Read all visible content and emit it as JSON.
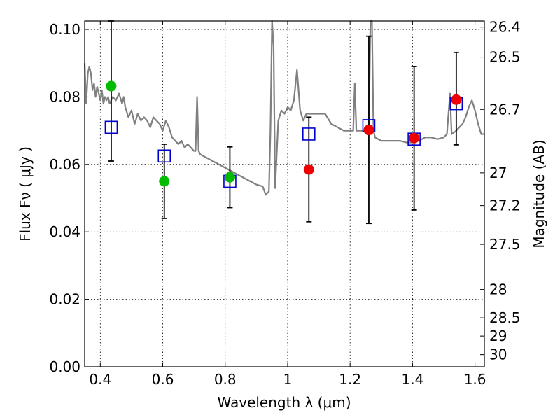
{
  "chart_data": {
    "type": "scatter",
    "xlabel": "Wavelength  λ (μm)",
    "ylabel": "Flux  Fν  ( μJy )",
    "ylabel_right": "Magnitude (AB)",
    "xlim": [
      0.35,
      1.63
    ],
    "ylim": [
      0.0,
      0.1025
    ],
    "grid": true,
    "x_ticks": [
      {
        "value": 0.4,
        "label": "0.4"
      },
      {
        "value": 0.6,
        "label": "0.6"
      },
      {
        "value": 0.8,
        "label": "0.8"
      },
      {
        "value": 1.0,
        "label": "1"
      },
      {
        "value": 1.2,
        "label": "1.2"
      },
      {
        "value": 1.4,
        "label": "1.4"
      },
      {
        "value": 1.6,
        "label": "1.6"
      }
    ],
    "y_ticks": [
      {
        "value": 0.0,
        "label": "0.00"
      },
      {
        "value": 0.02,
        "label": "0.02"
      },
      {
        "value": 0.04,
        "label": "0.04"
      },
      {
        "value": 0.06,
        "label": "0.06"
      },
      {
        "value": 0.08,
        "label": "0.08"
      },
      {
        "value": 0.1,
        "label": "0.10"
      }
    ],
    "right_ticks": [
      {
        "flux": 0.1007,
        "label": "26.4"
      },
      {
        "flux": 0.0918,
        "label": "26.5"
      },
      {
        "flux": 0.0763,
        "label": "26.7"
      },
      {
        "flux": 0.0575,
        "label": "27"
      },
      {
        "flux": 0.0478,
        "label": "27.2"
      },
      {
        "flux": 0.0363,
        "label": "27.5"
      },
      {
        "flux": 0.0229,
        "label": "28"
      },
      {
        "flux": 0.0145,
        "label": "28.5"
      },
      {
        "flux": 0.0091,
        "label": "29"
      },
      {
        "flux": 0.0036,
        "label": "30"
      }
    ],
    "series": [
      {
        "kind": "spectrum",
        "color": "#808080",
        "points": [
          [
            0.35,
            0.09
          ],
          [
            0.355,
            0.078
          ],
          [
            0.36,
            0.087
          ],
          [
            0.365,
            0.089
          ],
          [
            0.37,
            0.087
          ],
          [
            0.375,
            0.082
          ],
          [
            0.38,
            0.084
          ],
          [
            0.385,
            0.08
          ],
          [
            0.39,
            0.083
          ],
          [
            0.395,
            0.081
          ],
          [
            0.4,
            0.079
          ],
          [
            0.405,
            0.082
          ],
          [
            0.41,
            0.078
          ],
          [
            0.415,
            0.08
          ],
          [
            0.42,
            0.079
          ],
          [
            0.425,
            0.08
          ],
          [
            0.43,
            0.078
          ],
          [
            0.44,
            0.08
          ],
          [
            0.45,
            0.079
          ],
          [
            0.46,
            0.081
          ],
          [
            0.47,
            0.078
          ],
          [
            0.475,
            0.08
          ],
          [
            0.48,
            0.077
          ],
          [
            0.49,
            0.074
          ],
          [
            0.5,
            0.076
          ],
          [
            0.51,
            0.072
          ],
          [
            0.52,
            0.075
          ],
          [
            0.53,
            0.073
          ],
          [
            0.54,
            0.074
          ],
          [
            0.55,
            0.073
          ],
          [
            0.56,
            0.071
          ],
          [
            0.57,
            0.074
          ],
          [
            0.58,
            0.073
          ],
          [
            0.59,
            0.072
          ],
          [
            0.6,
            0.07
          ],
          [
            0.61,
            0.073
          ],
          [
            0.62,
            0.071
          ],
          [
            0.63,
            0.068
          ],
          [
            0.64,
            0.067
          ],
          [
            0.65,
            0.066
          ],
          [
            0.66,
            0.067
          ],
          [
            0.67,
            0.065
          ],
          [
            0.68,
            0.066
          ],
          [
            0.69,
            0.065
          ],
          [
            0.7,
            0.064
          ],
          [
            0.705,
            0.064
          ],
          [
            0.71,
            0.08
          ],
          [
            0.715,
            0.064
          ],
          [
            0.72,
            0.063
          ],
          [
            0.74,
            0.062
          ],
          [
            0.76,
            0.061
          ],
          [
            0.78,
            0.06
          ],
          [
            0.8,
            0.059
          ],
          [
            0.82,
            0.058
          ],
          [
            0.84,
            0.057
          ],
          [
            0.86,
            0.056
          ],
          [
            0.88,
            0.055
          ],
          [
            0.9,
            0.054
          ],
          [
            0.92,
            0.0535
          ],
          [
            0.93,
            0.051
          ],
          [
            0.94,
            0.052
          ],
          [
            0.945,
            0.07
          ],
          [
            0.95,
            0.103
          ],
          [
            0.955,
            0.095
          ],
          [
            0.96,
            0.053
          ],
          [
            0.97,
            0.073
          ],
          [
            0.98,
            0.076
          ],
          [
            0.99,
            0.075
          ],
          [
            1.0,
            0.077
          ],
          [
            1.01,
            0.076
          ],
          [
            1.02,
            0.079
          ],
          [
            1.03,
            0.088
          ],
          [
            1.04,
            0.076
          ],
          [
            1.05,
            0.073
          ],
          [
            1.06,
            0.075
          ],
          [
            1.08,
            0.075
          ],
          [
            1.1,
            0.075
          ],
          [
            1.12,
            0.075
          ],
          [
            1.14,
            0.072
          ],
          [
            1.16,
            0.071
          ],
          [
            1.18,
            0.07
          ],
          [
            1.2,
            0.07
          ],
          [
            1.21,
            0.07
          ],
          [
            1.215,
            0.084
          ],
          [
            1.22,
            0.07
          ],
          [
            1.24,
            0.07
          ],
          [
            1.26,
            0.069
          ],
          [
            1.265,
            0.103
          ],
          [
            1.27,
            0.103
          ],
          [
            1.275,
            0.07
          ],
          [
            1.28,
            0.068
          ],
          [
            1.3,
            0.067
          ],
          [
            1.32,
            0.067
          ],
          [
            1.34,
            0.067
          ],
          [
            1.36,
            0.067
          ],
          [
            1.38,
            0.0665
          ],
          [
            1.4,
            0.0665
          ],
          [
            1.42,
            0.067
          ],
          [
            1.44,
            0.068
          ],
          [
            1.46,
            0.068
          ],
          [
            1.48,
            0.0675
          ],
          [
            1.5,
            0.068
          ],
          [
            1.51,
            0.069
          ],
          [
            1.52,
            0.081
          ],
          [
            1.525,
            0.069
          ],
          [
            1.54,
            0.07
          ],
          [
            1.55,
            0.071
          ],
          [
            1.56,
            0.072
          ],
          [
            1.57,
            0.074
          ],
          [
            1.58,
            0.077
          ],
          [
            1.59,
            0.079
          ],
          [
            1.6,
            0.076
          ],
          [
            1.61,
            0.072
          ],
          [
            1.62,
            0.069
          ],
          [
            1.63,
            0.069
          ]
        ]
      },
      {
        "kind": "model-squares",
        "color": "#0000cc",
        "points": [
          [
            0.435,
            0.071
          ],
          [
            0.605,
            0.0625
          ],
          [
            0.815,
            0.055
          ],
          [
            1.068,
            0.069
          ],
          [
            1.26,
            0.0715
          ],
          [
            1.405,
            0.0675
          ],
          [
            1.54,
            0.078
          ]
        ]
      },
      {
        "kind": "observed",
        "color": "#00bb00",
        "points": [
          {
            "x": 0.435,
            "y": 0.0832,
            "ylo": 0.061,
            "yhi": 0.1025
          },
          {
            "x": 0.605,
            "y": 0.055,
            "ylo": 0.044,
            "yhi": 0.066
          },
          {
            "x": 0.815,
            "y": 0.0562,
            "ylo": 0.0472,
            "yhi": 0.0652
          }
        ]
      },
      {
        "kind": "observed",
        "color": "#ee0000",
        "points": [
          {
            "x": 1.068,
            "y": 0.0585,
            "ylo": 0.043,
            "yhi": 0.074
          },
          {
            "x": 1.26,
            "y": 0.0702,
            "ylo": 0.0425,
            "yhi": 0.098
          },
          {
            "x": 1.405,
            "y": 0.0678,
            "ylo": 0.0465,
            "yhi": 0.089
          },
          {
            "x": 1.54,
            "y": 0.0792,
            "ylo": 0.0658,
            "yhi": 0.0932
          }
        ]
      }
    ]
  }
}
